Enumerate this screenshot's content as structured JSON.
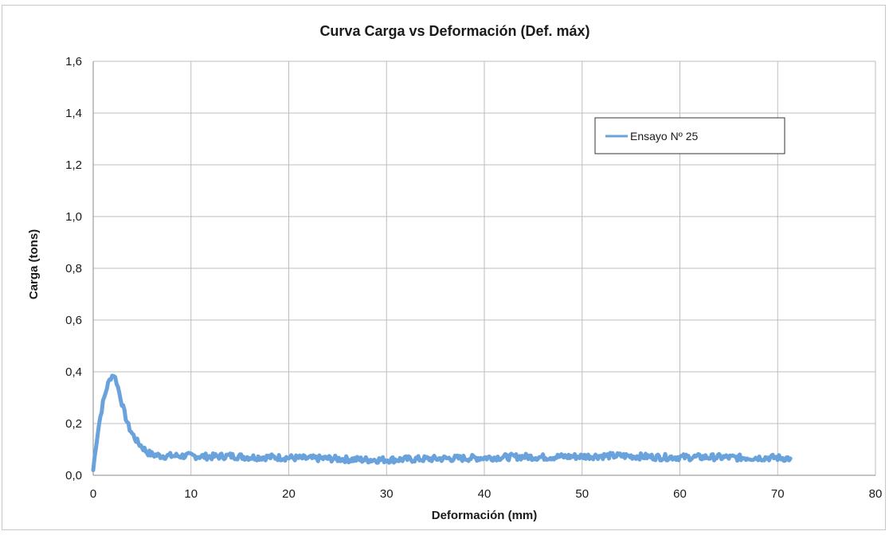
{
  "chart_data": {
    "type": "line",
    "title": "Curva Carga vs Deformación (Def. máx)",
    "xlabel": "Deformación (mm)",
    "ylabel": "Carga (tons)",
    "xlim": [
      0,
      80
    ],
    "ylim": [
      0,
      1.6
    ],
    "x_ticks": [
      "0",
      "10",
      "20",
      "30",
      "40",
      "50",
      "60",
      "70",
      "80"
    ],
    "y_ticks": [
      "0,0",
      "0,2",
      "0,4",
      "0,6",
      "0,8",
      "1,0",
      "1,2",
      "1,4",
      "1,6"
    ],
    "grid": true,
    "legend_position": "top-right",
    "series_color": "#6aa3dc",
    "series": [
      {
        "name": "Ensayo Nº 25",
        "x": [
          0,
          0.3,
          0.6,
          1.0,
          1.4,
          1.8,
          2.1,
          2.4,
          2.8,
          3.2,
          3.6,
          4.0,
          4.5,
          5.0,
          5.5,
          6.0,
          7.0,
          8.0,
          10,
          12,
          14,
          16,
          18,
          20,
          22,
          24,
          26,
          28,
          30,
          32,
          34,
          36,
          38,
          40,
          42,
          44,
          46,
          48,
          50,
          52,
          54,
          56,
          58,
          60,
          62,
          64,
          66,
          68,
          70,
          71.3
        ],
        "y": [
          0.02,
          0.12,
          0.2,
          0.28,
          0.34,
          0.38,
          0.39,
          0.36,
          0.3,
          0.24,
          0.19,
          0.16,
          0.13,
          0.11,
          0.09,
          0.08,
          0.075,
          0.075,
          0.075,
          0.072,
          0.075,
          0.07,
          0.07,
          0.068,
          0.065,
          0.065,
          0.062,
          0.06,
          0.06,
          0.062,
          0.063,
          0.065,
          0.066,
          0.068,
          0.07,
          0.072,
          0.07,
          0.072,
          0.073,
          0.075,
          0.075,
          0.073,
          0.07,
          0.07,
          0.07,
          0.07,
          0.068,
          0.068,
          0.068,
          0.065
        ]
      }
    ]
  }
}
